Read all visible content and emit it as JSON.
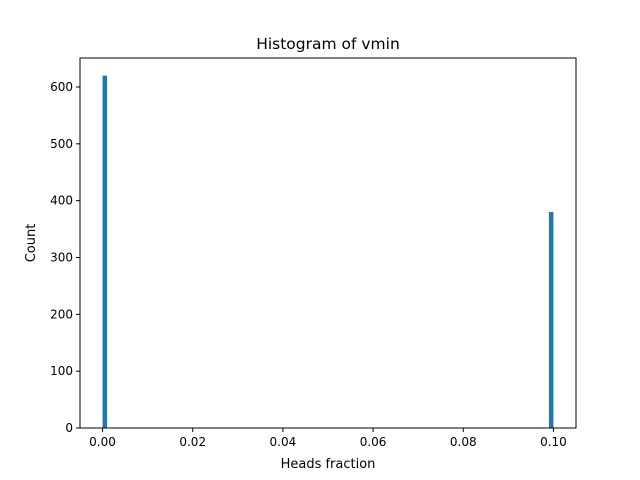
{
  "chart_data": {
    "type": "bar",
    "title": "Histogram of vmin",
    "xlabel": "Heads fraction",
    "ylabel": "Count",
    "xlim": [
      -0.005,
      0.105
    ],
    "ylim": [
      0,
      651
    ],
    "bar_color": "#1f77b4",
    "bars": [
      {
        "x0": 0.0,
        "x1": 0.001,
        "value": 620
      },
      {
        "x0": 0.099,
        "x1": 0.1,
        "value": 380
      }
    ],
    "x_ticks": [
      {
        "value": 0.0,
        "label": "0.00"
      },
      {
        "value": 0.02,
        "label": "0.02"
      },
      {
        "value": 0.04,
        "label": "0.04"
      },
      {
        "value": 0.06,
        "label": "0.06"
      },
      {
        "value": 0.08,
        "label": "0.08"
      },
      {
        "value": 0.1,
        "label": "0.10"
      }
    ],
    "y_ticks": [
      {
        "value": 0,
        "label": "0"
      },
      {
        "value": 100,
        "label": "100"
      },
      {
        "value": 200,
        "label": "200"
      },
      {
        "value": 300,
        "label": "300"
      },
      {
        "value": 400,
        "label": "400"
      },
      {
        "value": 500,
        "label": "500"
      },
      {
        "value": 600,
        "label": "600"
      }
    ],
    "grid": false,
    "legend": "none"
  }
}
